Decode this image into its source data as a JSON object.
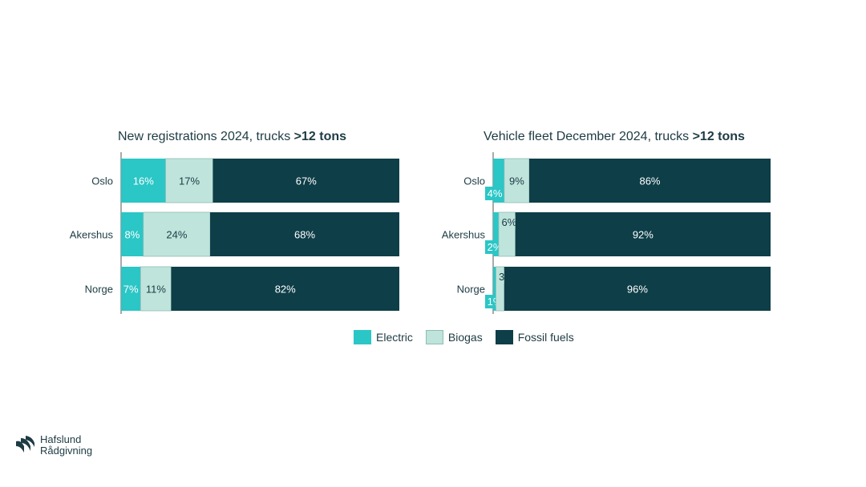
{
  "colors": {
    "electric": "#2bc6c6",
    "biogas": "#bfe4dc",
    "fossil": "#0e3e48",
    "axis": "#555555"
  },
  "legend": {
    "electric": "Electric",
    "biogas": "Biogas",
    "fossil": "Fossil fuels"
  },
  "chart_data": [
    {
      "type": "bar",
      "stacked": true,
      "orientation": "horizontal",
      "title_prefix": "New registrations 2024, trucks ",
      "title_bold": ">12 tons",
      "categories": [
        "Oslo",
        "Akershus",
        "Norge"
      ],
      "series": [
        {
          "name": "Electric",
          "values": [
            16,
            8,
            7
          ],
          "labels": [
            "16%",
            "8%",
            "7%"
          ]
        },
        {
          "name": "Biogas",
          "values": [
            17,
            24,
            11
          ],
          "labels": [
            "17%",
            "24%",
            "11%"
          ]
        },
        {
          "name": "Fossil fuels",
          "values": [
            67,
            68,
            82
          ],
          "labels": [
            "67%",
            "68%",
            "82%"
          ]
        }
      ],
      "xlim": [
        0,
        100
      ]
    },
    {
      "type": "bar",
      "stacked": true,
      "orientation": "horizontal",
      "title_prefix": "Vehicle fleet December 2024, trucks ",
      "title_bold": ">12 tons",
      "categories": [
        "Oslo",
        "Akershus",
        "Norge"
      ],
      "series": [
        {
          "name": "Electric",
          "values": [
            4,
            2,
            1
          ],
          "labels": [
            "4%",
            "2%",
            "1%"
          ]
        },
        {
          "name": "Biogas",
          "values": [
            9,
            6,
            3
          ],
          "labels": [
            "9%",
            "6%",
            "3%"
          ]
        },
        {
          "name": "Fossil fuels",
          "values": [
            86,
            92,
            96
          ],
          "labels": [
            "86%",
            "92%",
            "96%"
          ]
        }
      ],
      "xlim": [
        0,
        100
      ]
    }
  ],
  "logo": {
    "line1": "Hafslund",
    "line2": "Rådgivning"
  }
}
